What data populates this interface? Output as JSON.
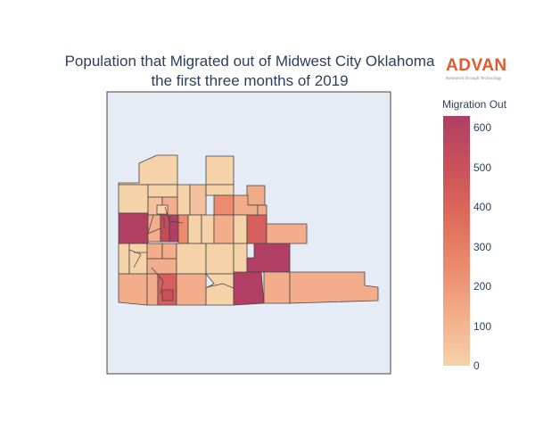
{
  "title": {
    "line1": "Population that Migrated out of Midwest City Oklahoma",
    "line2": "the first three months of 2019"
  },
  "logo": {
    "word": "ADVAN",
    "tagline": "Research through Technology"
  },
  "colorbar": {
    "title": "Migration Out",
    "ticks": [
      "0",
      "100",
      "200",
      "300",
      "400",
      "500",
      "600"
    ],
    "min": 0,
    "max": 630,
    "colors": [
      "#f6d2a9",
      "#f3ad8b",
      "#eb8a6d",
      "#dd6a5b",
      "#c9505a",
      "#b13f64"
    ]
  },
  "map": {
    "background": "#e5ecf6",
    "border": "#444444"
  }
}
